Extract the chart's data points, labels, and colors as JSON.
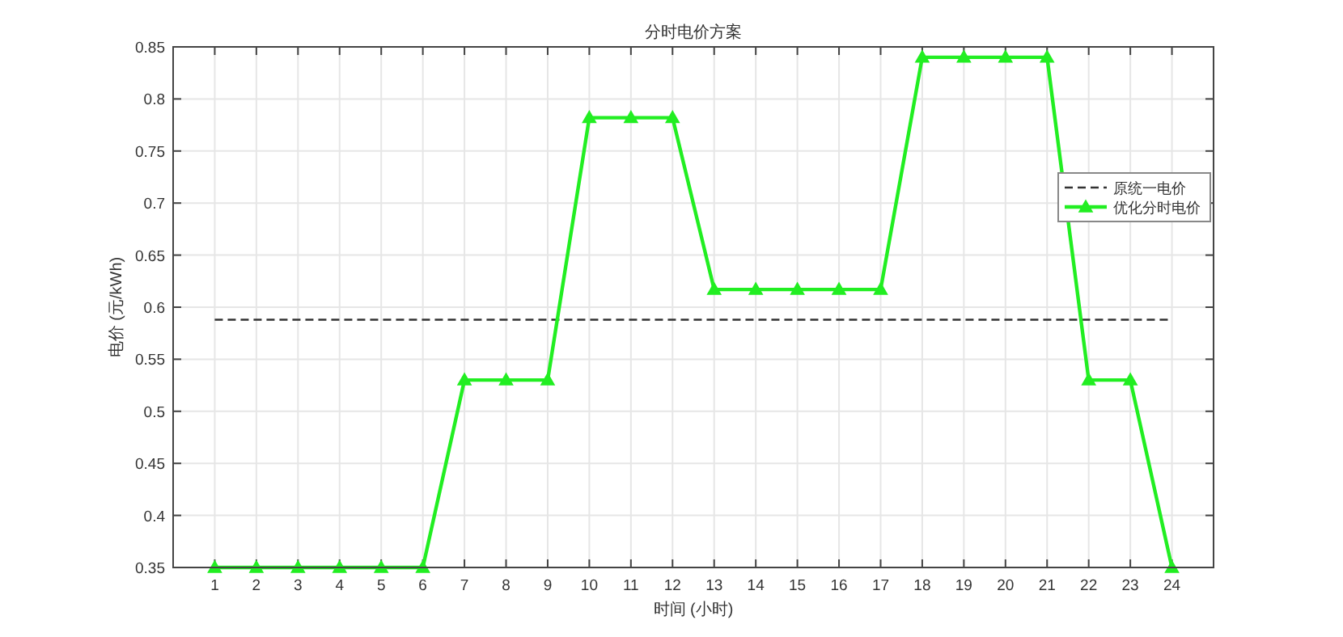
{
  "chart_data": {
    "type": "line",
    "title": "分时电价方案",
    "xlabel": "时间 (小时)",
    "ylabel": "电价 (元/kWh)",
    "x": [
      1,
      2,
      3,
      4,
      5,
      6,
      7,
      8,
      9,
      10,
      11,
      12,
      13,
      14,
      15,
      16,
      17,
      18,
      19,
      20,
      21,
      22,
      23,
      24
    ],
    "series": [
      {
        "name": "优化分时电价",
        "color": "#22ee22",
        "values": [
          0.35,
          0.35,
          0.35,
          0.35,
          0.35,
          0.35,
          0.53,
          0.53,
          0.53,
          0.782,
          0.782,
          0.782,
          0.617,
          0.617,
          0.617,
          0.617,
          0.617,
          0.84,
          0.84,
          0.84,
          0.84,
          0.53,
          0.53,
          0.35
        ]
      }
    ],
    "ref_lines": [
      {
        "axis": "y",
        "value": 0.588,
        "label": "原统一电价",
        "color": "#333333",
        "line_style": "dashed"
      }
    ],
    "xlim": [
      0,
      25
    ],
    "xticks": [
      1,
      2,
      3,
      4,
      5,
      6,
      7,
      8,
      9,
      10,
      11,
      12,
      13,
      14,
      15,
      16,
      17,
      18,
      19,
      20,
      21,
      22,
      23,
      24
    ],
    "ylim": [
      0.35,
      0.85
    ],
    "yticks": [
      0.35,
      0.4,
      0.45,
      0.5,
      0.55,
      0.6,
      0.65,
      0.7,
      0.75,
      0.8,
      0.85
    ],
    "grid": true,
    "legend": "right",
    "marker": "triangle",
    "line_style": "solid"
  }
}
